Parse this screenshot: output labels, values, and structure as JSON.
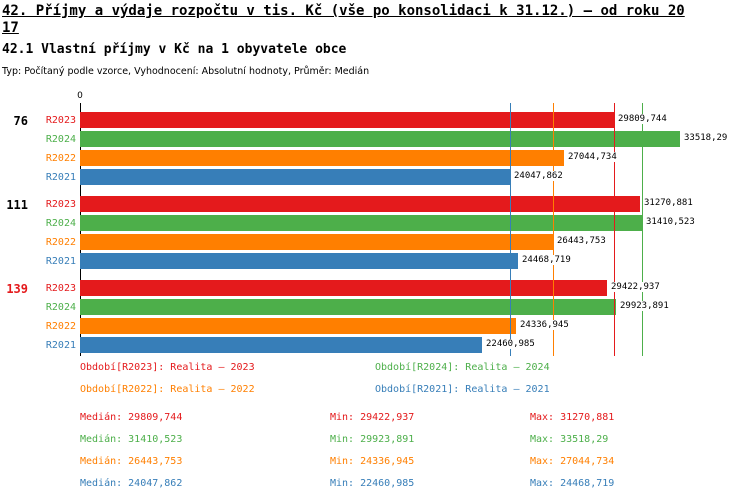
{
  "header": {
    "title_line1": "42. Příjmy a výdaje rozpočtu v tis. Kč (vše po konsolidaci k 31.12.) – od roku 20",
    "title_line2": "17",
    "subtitle": "42.1 Vlastní příjmy v Kč na 1 obyvatele obce",
    "meta": "Typ: Počítaný podle vzorce, Vyhodnocení: Absolutní hodnoty, Průměr: Medián"
  },
  "colors": {
    "R2023": "#e41a1c",
    "R2024": "#4daf4a",
    "R2022": "#ff7f00",
    "R2021": "#377eb8",
    "axis": "#000000"
  },
  "chart_data": {
    "type": "bar",
    "orientation": "horizontal",
    "x_axis": {
      "zero_label": "0",
      "xmax": 33518.29
    },
    "series_order": [
      "R2023",
      "R2024",
      "R2022",
      "R2021"
    ],
    "groups": [
      {
        "label": "76",
        "label_color": "#000000",
        "bars": [
          {
            "series": "R2023",
            "value": 29809.744,
            "value_label": "29809,744"
          },
          {
            "series": "R2024",
            "value": 33518.29,
            "value_label": "33518,29"
          },
          {
            "series": "R2022",
            "value": 27044.734,
            "value_label": "27044,734"
          },
          {
            "series": "R2021",
            "value": 24047.862,
            "value_label": "24047,862"
          }
        ]
      },
      {
        "label": "111",
        "label_color": "#000000",
        "bars": [
          {
            "series": "R2023",
            "value": 31270.881,
            "value_label": "31270,881"
          },
          {
            "series": "R2024",
            "value": 31410.523,
            "value_label": "31410,523"
          },
          {
            "series": "R2022",
            "value": 26443.753,
            "value_label": "26443,753"
          },
          {
            "series": "R2021",
            "value": 24468.719,
            "value_label": "24468,719"
          }
        ]
      },
      {
        "label": "139",
        "label_color": "#e41a1c",
        "bars": [
          {
            "series": "R2023",
            "value": 29422.937,
            "value_label": "29422,937"
          },
          {
            "series": "R2024",
            "value": 29923.891,
            "value_label": "29923,891"
          },
          {
            "series": "R2022",
            "value": 24336.945,
            "value_label": "24336,945"
          },
          {
            "series": "R2021",
            "value": 22460.985,
            "value_label": "22460,985"
          }
        ]
      }
    ],
    "median_lines": [
      {
        "series": "R2023",
        "value": 29809.744
      },
      {
        "series": "R2024",
        "value": 31410.523
      },
      {
        "series": "R2022",
        "value": 26443.753
      },
      {
        "series": "R2021",
        "value": 24047.862
      }
    ]
  },
  "legend": [
    {
      "series": "R2023",
      "label": "Období[R2023]: Realita – 2023"
    },
    {
      "series": "R2024",
      "label": "Období[R2024]: Realita – 2024"
    },
    {
      "series": "R2022",
      "label": "Období[R2022]: Realita – 2022"
    },
    {
      "series": "R2021",
      "label": "Období[R2021]: Realita – 2021"
    }
  ],
  "stats": {
    "labels": {
      "median": "Medián:",
      "min": "Min:",
      "max": "Max:"
    },
    "rows": [
      {
        "series": "R2023",
        "median": "29809,744",
        "min": "29422,937",
        "max": "31270,881"
      },
      {
        "series": "R2024",
        "median": "31410,523",
        "min": "29923,891",
        "max": "33518,29"
      },
      {
        "series": "R2022",
        "median": "26443,753",
        "min": "24336,945",
        "max": "27044,734"
      },
      {
        "series": "R2021",
        "median": "24047,862",
        "min": "22460,985",
        "max": "24468,719"
      }
    ]
  }
}
